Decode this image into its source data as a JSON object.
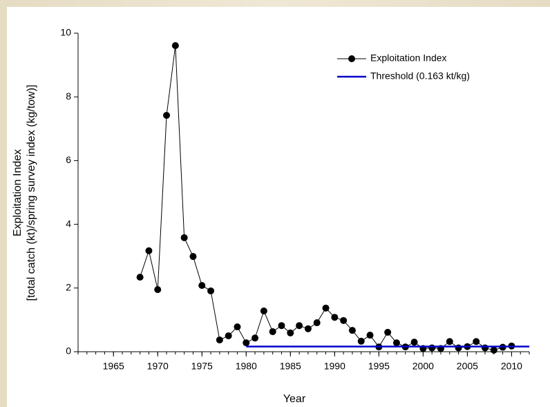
{
  "chart_data": {
    "type": "line",
    "x_label": "Year",
    "y_label": [
      "Exploitation Index",
      "[total catch (kt)/spring survey index (kg/tow)]"
    ],
    "xlim": [
      1961,
      2012
    ],
    "xticks": [
      1965,
      1970,
      1975,
      1980,
      1985,
      1990,
      1995,
      2000,
      2005,
      2010
    ],
    "ylim": [
      0,
      10
    ],
    "yticks": [
      0,
      2,
      4,
      6,
      8,
      10
    ],
    "legend": "top-right",
    "series": [
      {
        "name": "Exploitation Index",
        "color": "#000000",
        "markers": true,
        "x": [
          1968,
          1969,
          1970,
          1971,
          1972,
          1973,
          1974,
          1975,
          1976,
          1977,
          1978,
          1979,
          1980,
          1981,
          1982,
          1983,
          1984,
          1985,
          1986,
          1987,
          1988,
          1989,
          1990,
          1991,
          1992,
          1993,
          1994,
          1995,
          1996,
          1997,
          1998,
          1999,
          2000,
          2001,
          2002,
          2003,
          2004,
          2005,
          2006,
          2007,
          2008,
          2009,
          2010
        ],
        "values": [
          2.34,
          3.17,
          1.95,
          7.42,
          9.61,
          3.58,
          2.99,
          2.08,
          1.91,
          0.37,
          0.5,
          0.78,
          0.28,
          0.43,
          1.28,
          0.63,
          0.82,
          0.59,
          0.82,
          0.72,
          0.91,
          1.37,
          1.08,
          0.98,
          0.67,
          0.33,
          0.52,
          0.15,
          0.61,
          0.28,
          0.15,
          0.3,
          0.1,
          0.12,
          0.1,
          0.32,
          0.12,
          0.16,
          0.32,
          0.12,
          0.05,
          0.14,
          0.18
        ]
      },
      {
        "name": "Threshold (0.163 kt/kg)",
        "color": "#0000cc",
        "markers": false,
        "x": [
          1980,
          2012
        ],
        "values": [
          0.163,
          0.163
        ]
      }
    ]
  }
}
